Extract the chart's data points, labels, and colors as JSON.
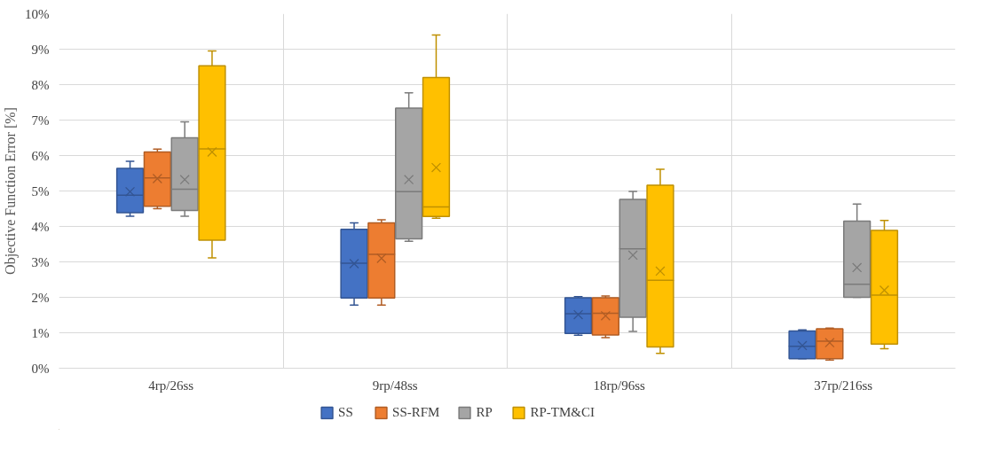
{
  "chart_data": {
    "type": "box",
    "ylabel": "Objective Function Error [%]",
    "categories": [
      "4rp/26ss",
      "9rp/48ss",
      "18rp/96ss",
      "37rp/216ss"
    ],
    "ylim": [
      0,
      10
    ],
    "yticks": [
      {
        "value": 0,
        "label": "0%"
      },
      {
        "value": 1,
        "label": "1%"
      },
      {
        "value": 2,
        "label": "2%"
      },
      {
        "value": 3,
        "label": "3%"
      },
      {
        "value": 4,
        "label": "4%"
      },
      {
        "value": 5,
        "label": "5%"
      },
      {
        "value": 6,
        "label": "6%"
      },
      {
        "value": 7,
        "label": "7%"
      },
      {
        "value": 8,
        "label": "8%"
      },
      {
        "value": 9,
        "label": "9%"
      },
      {
        "value": 10,
        "label": "10%"
      }
    ],
    "grid": true,
    "legend": "bottom",
    "marker": "cross",
    "series": [
      {
        "name": "SS",
        "color": "#4472c4",
        "boxes": [
          {
            "low": 4.29,
            "q1": 4.39,
            "median": 4.88,
            "q3": 5.64,
            "high": 5.84,
            "mean": 4.98
          },
          {
            "low": 1.78,
            "q1": 1.98,
            "median": 2.96,
            "q3": 3.92,
            "high": 4.1,
            "mean": 2.95
          },
          {
            "low": 0.93,
            "q1": 0.98,
            "median": 1.54,
            "q3": 1.99,
            "high": 2.02,
            "mean": 1.51
          },
          {
            "low": 0.27,
            "q1": 0.27,
            "median": 0.62,
            "q3": 1.05,
            "high": 1.08,
            "mean": 0.64
          }
        ]
      },
      {
        "name": "SS-RFM",
        "color": "#ed7d31",
        "boxes": [
          {
            "low": 4.5,
            "q1": 4.57,
            "median": 5.37,
            "q3": 6.1,
            "high": 6.18,
            "mean": 5.35
          },
          {
            "low": 1.78,
            "q1": 1.98,
            "median": 3.21,
            "q3": 4.1,
            "high": 4.19,
            "mean": 3.1
          },
          {
            "low": 0.86,
            "q1": 0.94,
            "median": 1.55,
            "q3": 1.99,
            "high": 2.04,
            "mean": 1.48
          },
          {
            "low": 0.23,
            "q1": 0.27,
            "median": 0.76,
            "q3": 1.11,
            "high": 1.13,
            "mean": 0.72
          }
        ]
      },
      {
        "name": "RP",
        "color": "#a5a5a5",
        "boxes": [
          {
            "low": 4.29,
            "q1": 4.45,
            "median": 5.05,
            "q3": 6.5,
            "high": 6.95,
            "mean": 5.32
          },
          {
            "low": 3.58,
            "q1": 3.65,
            "median": 4.98,
            "q3": 7.34,
            "high": 7.77,
            "mean": 5.32
          },
          {
            "low": 1.04,
            "q1": 1.44,
            "median": 3.37,
            "q3": 4.76,
            "high": 4.99,
            "mean": 3.19
          },
          {
            "low": 2.0,
            "q1": 2.0,
            "median": 2.37,
            "q3": 4.15,
            "high": 4.63,
            "mean": 2.84
          }
        ]
      },
      {
        "name": "RP-TM&CI",
        "color": "#ffc000",
        "boxes": [
          {
            "low": 3.11,
            "q1": 3.61,
            "median": 6.19,
            "q3": 8.53,
            "high": 8.95,
            "mean": 6.1
          },
          {
            "low": 4.23,
            "q1": 4.28,
            "median": 4.55,
            "q3": 8.2,
            "high": 9.4,
            "mean": 5.66
          },
          {
            "low": 0.42,
            "q1": 0.6,
            "median": 2.48,
            "q3": 5.16,
            "high": 5.61,
            "mean": 2.74
          },
          {
            "low": 0.55,
            "q1": 0.68,
            "median": 2.06,
            "q3": 3.89,
            "high": 4.17,
            "mean": 2.2
          }
        ]
      }
    ]
  }
}
